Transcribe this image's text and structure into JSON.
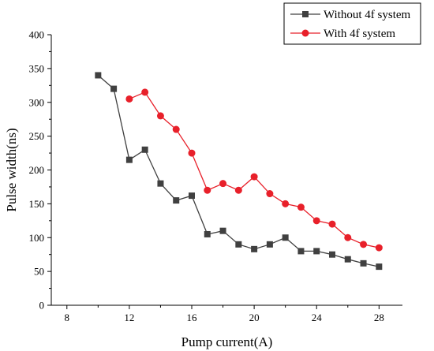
{
  "chart_data": {
    "type": "line",
    "xlabel": "Pump current(A)",
    "ylabel": "Pulse width(ns)",
    "xlim": [
      7,
      29.5
    ],
    "ylim": [
      0,
      400
    ],
    "xticks": [
      8,
      12,
      16,
      20,
      24,
      28
    ],
    "yticks": [
      0,
      50,
      100,
      150,
      200,
      250,
      300,
      350,
      400
    ],
    "x_tick_labels": [
      "8",
      "12",
      "16",
      "20",
      "24",
      "28"
    ],
    "y_tick_labels": [
      "0",
      "50",
      "100",
      "150",
      "200",
      "250",
      "300",
      "350",
      "400"
    ],
    "grid": false,
    "legend_position": "top-right",
    "series": [
      {
        "name": "Without 4f system",
        "color": "#404040",
        "marker": "square",
        "x": [
          10,
          11,
          12,
          13,
          14,
          15,
          16,
          17,
          18,
          19,
          20,
          21,
          22,
          23,
          24,
          25,
          26,
          27,
          28
        ],
        "values": [
          340,
          320,
          215,
          230,
          180,
          155,
          162,
          105,
          110,
          90,
          83,
          90,
          100,
          80,
          80,
          75,
          68,
          62,
          57
        ]
      },
      {
        "name": "With 4f system",
        "color": "#e8202a",
        "marker": "circle",
        "x": [
          12,
          13,
          14,
          15,
          16,
          17,
          18,
          19,
          20,
          21,
          22,
          23,
          24,
          25,
          26,
          27,
          28
        ],
        "values": [
          305,
          315,
          280,
          260,
          225,
          170,
          180,
          170,
          190,
          165,
          150,
          145,
          125,
          120,
          100,
          90,
          85
        ]
      }
    ]
  }
}
